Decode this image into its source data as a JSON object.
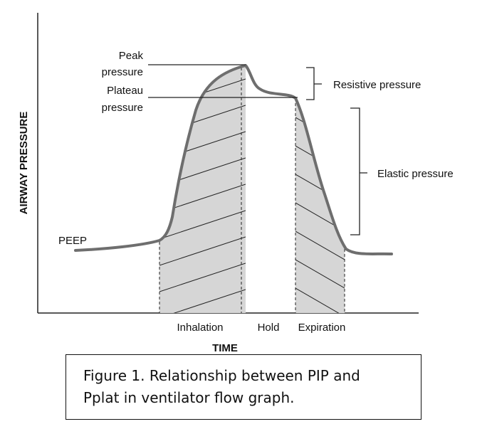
{
  "diagram": {
    "y_axis_label": "AIRWAY PRESSURE",
    "x_axis_label": "TIME",
    "labels": {
      "peak_line1": "Peak",
      "peak_line2": "pressure",
      "plateau_line1": "Plateau",
      "plateau_line2": "pressure",
      "peep": "PEEP",
      "resistive": "Resistive pressure",
      "elastic": "Elastic pressure"
    },
    "phases": [
      "Inhalation",
      "Hold",
      "Expiration"
    ],
    "colors": {
      "curve": "#6e6e6e",
      "shading": "#d6d6d6",
      "lines": "#222222"
    }
  },
  "caption": {
    "line1": "Figure 1. Relationship between PIP and",
    "line2": "Pplat in ventilator flow graph."
  }
}
